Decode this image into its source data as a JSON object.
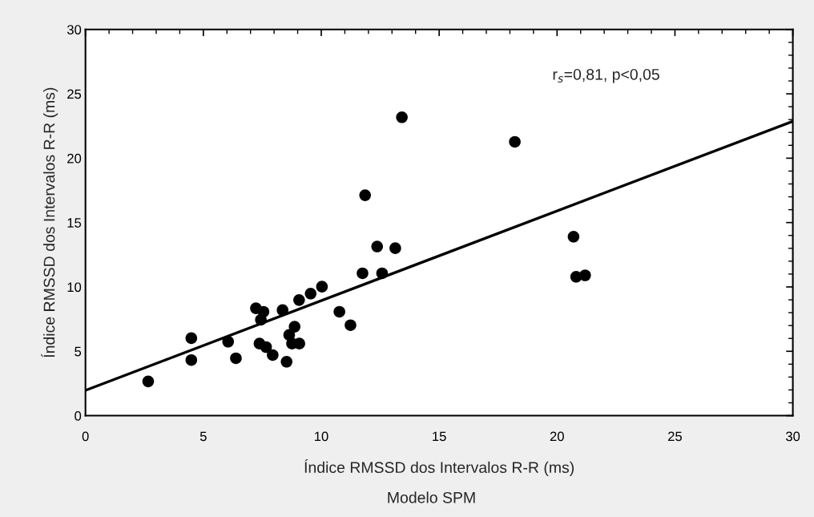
{
  "chart_data": {
    "type": "scatter",
    "xlabel": "Índice RMSSD dos Intervalos R-R (ms)",
    "ylabel": "Índice RMSSD dos Intervalos R-R (ms)",
    "annotations": [
      "r$_{s}$=0,81, p<0,05",
      "Modelo SPM"
    ],
    "xlim": [
      0,
      30
    ],
    "ylim": [
      0,
      30
    ],
    "xticks": [
      0,
      5,
      10,
      15,
      20,
      25,
      30
    ],
    "yticks": [
      0,
      5,
      10,
      15,
      20,
      25,
      30
    ],
    "grid": false,
    "marker": "circle",
    "series": [
      {
        "color": "#000000",
        "x": [
          2.66,
          4.49,
          4.49,
          6.05,
          6.38,
          7.23,
          7.55,
          7.44,
          7.38,
          7.66,
          7.94,
          8.36,
          8.53,
          8.64,
          8.87,
          8.76,
          9.07,
          9.06,
          9.55,
          10.03,
          10.77,
          11.24,
          11.75,
          12.58,
          11.86,
          12.37,
          13.14,
          13.42,
          18.21,
          20.7,
          20.81,
          21.19
        ],
        "values": [
          2.66,
          6.02,
          4.32,
          5.75,
          4.46,
          8.34,
          8.07,
          7.45,
          5.6,
          5.33,
          4.71,
          8.2,
          4.19,
          6.27,
          6.91,
          5.6,
          5.6,
          8.98,
          9.48,
          10.02,
          8.07,
          7.03,
          11.06,
          11.06,
          17.12,
          13.14,
          13.01,
          23.18,
          21.27,
          13.9,
          10.79,
          10.9
        ]
      },
      {
        "type": "line",
        "color": "#000000",
        "x": [
          0,
          30
        ],
        "values": [
          1.97,
          22.87
        ],
        "marker": "none",
        "line_style": "solid"
      }
    ]
  }
}
